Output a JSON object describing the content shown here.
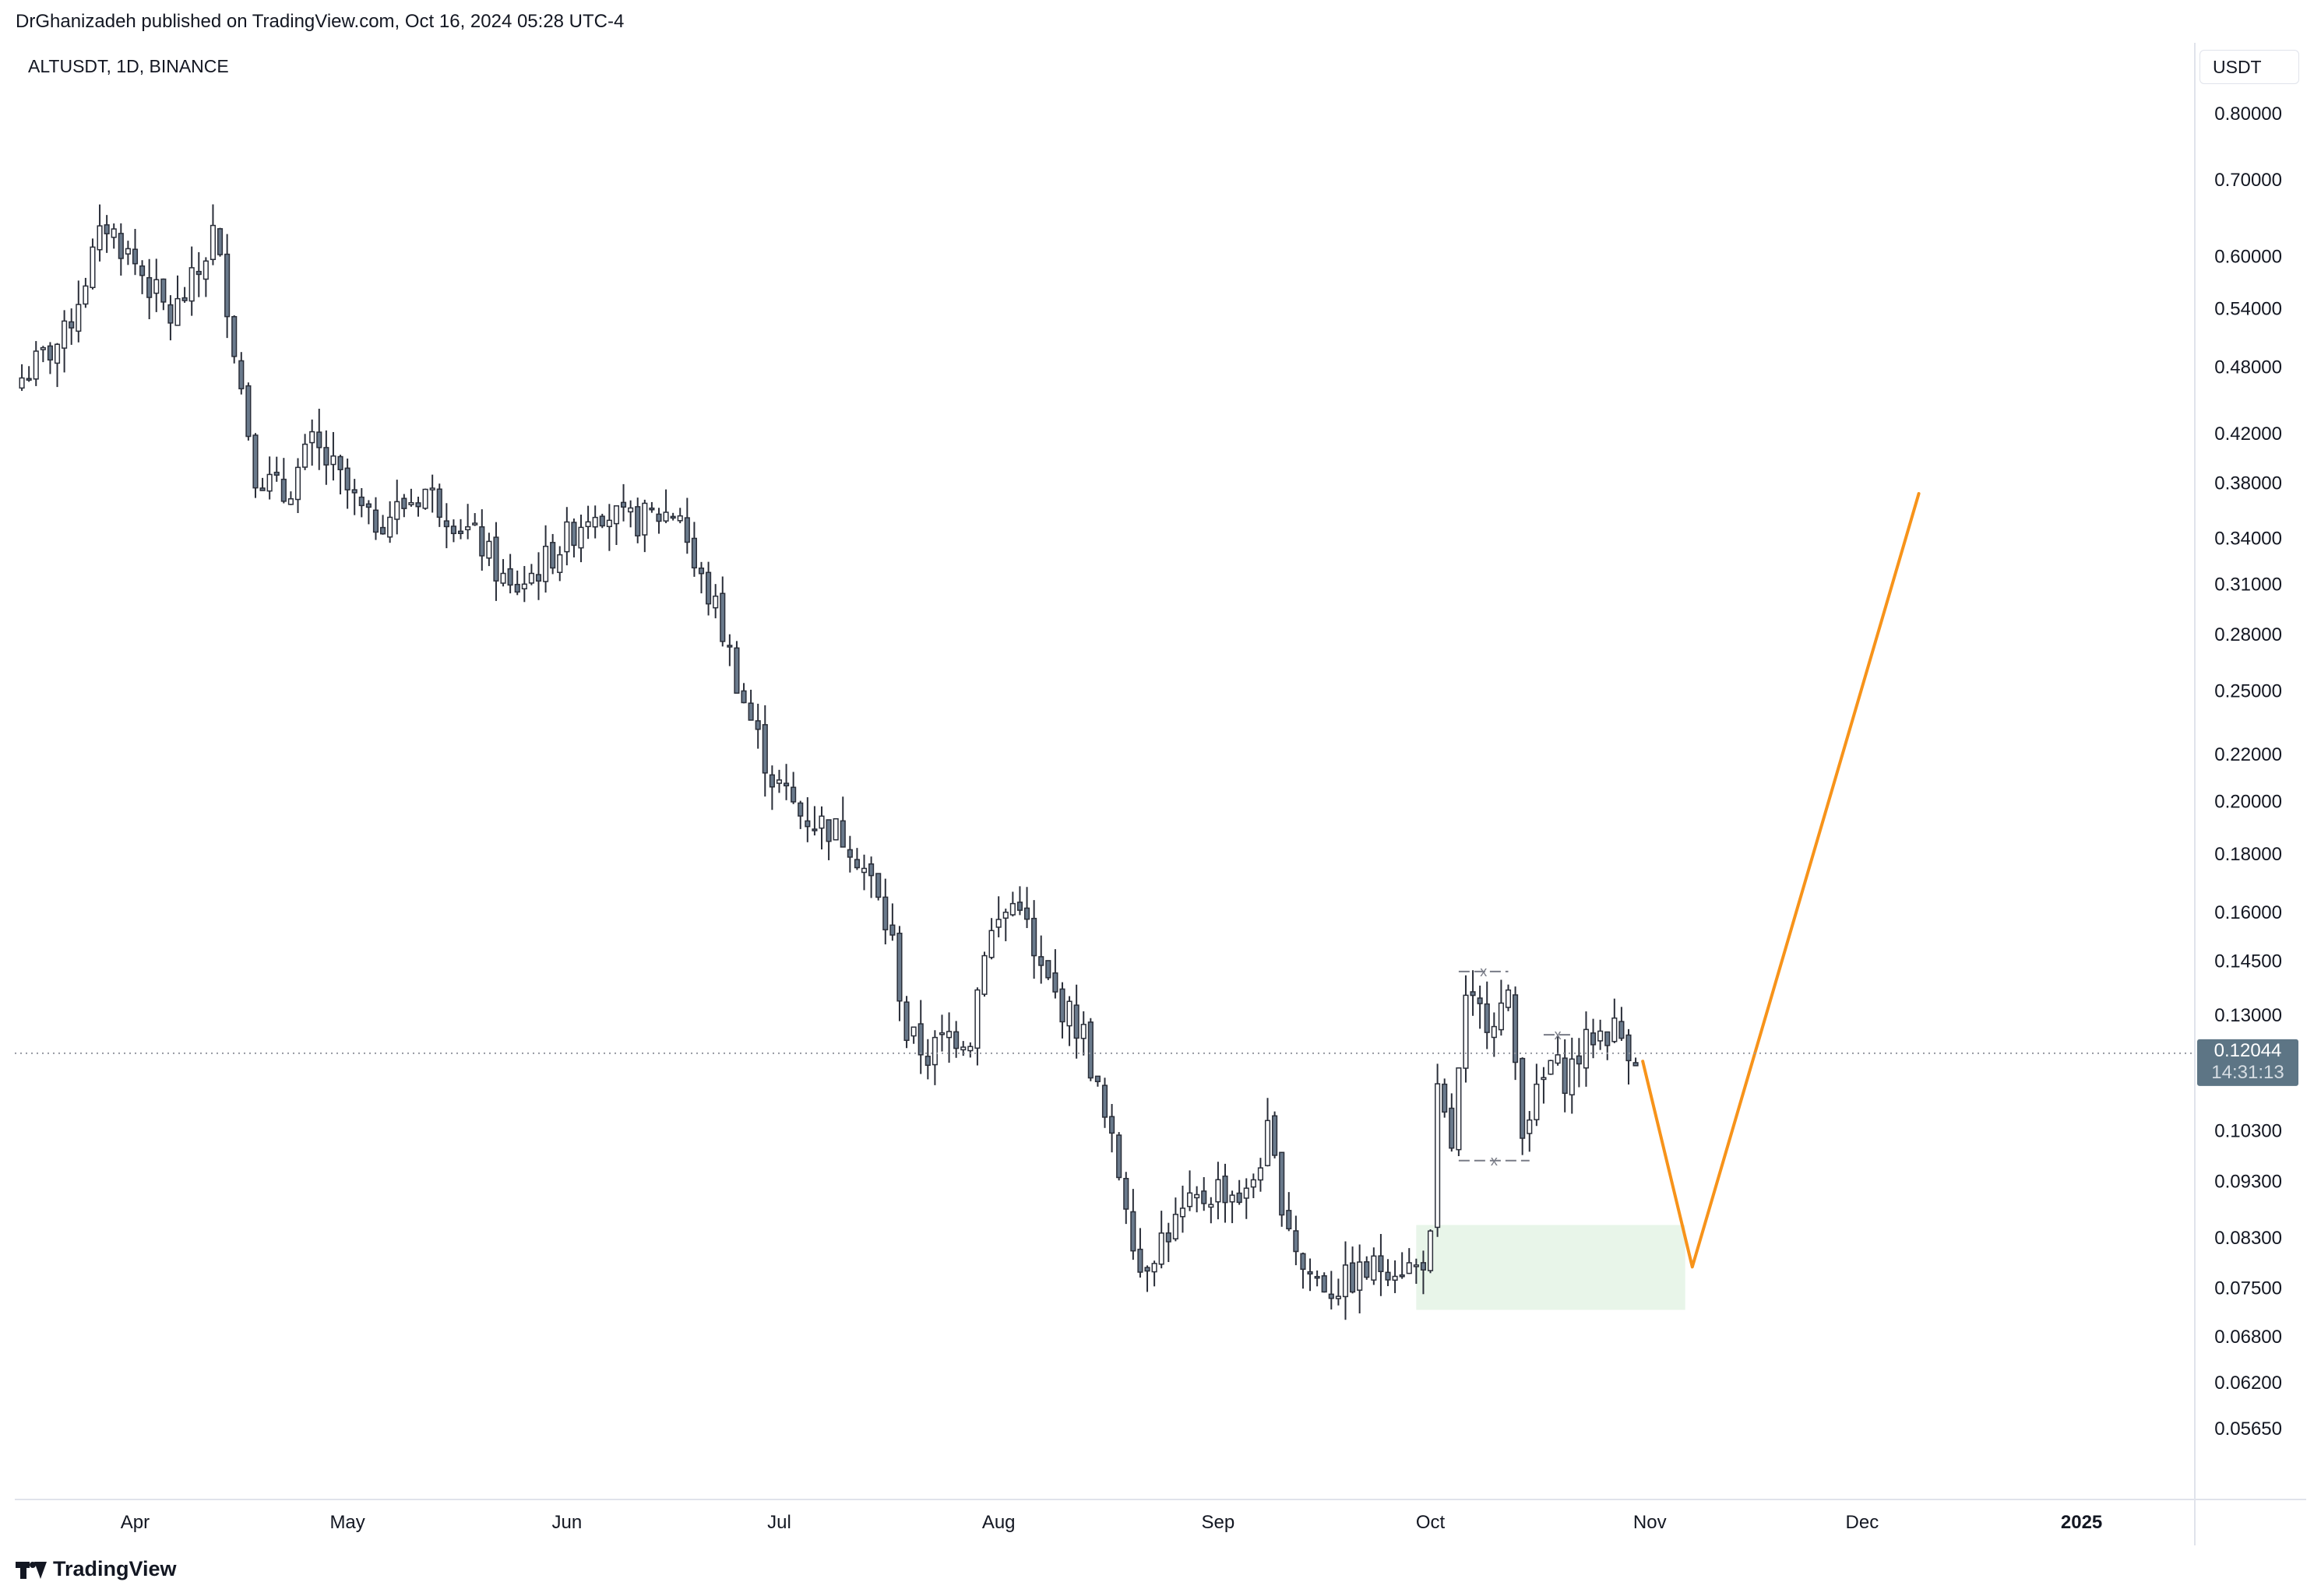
{
  "header": {
    "published_line": "DrGhanizadeh published on TradingView.com, Oct 16, 2024 05:28 UTC-4"
  },
  "symbol_info": "ALTUSDT, 1D, BINANCE",
  "currency_button": "USDT",
  "footer": {
    "brand": "TradingView"
  },
  "colors": {
    "candle_body": "#6a7a8c",
    "candle_border": "#2a2e39",
    "candle_up_fill": "#ffffff",
    "projection_line": "#f7931a",
    "demand_zone": "#e8f5e9",
    "price_tag_bg": "#5d7585",
    "grid_line": "#e0e3eb"
  },
  "chart_data": {
    "type": "candlestick",
    "title": "ALTUSDT, 1D, BINANCE",
    "y_scale": "log",
    "y_ticks": [
      "0.80000",
      "0.70000",
      "0.60000",
      "0.54000",
      "0.48000",
      "0.42000",
      "0.38000",
      "0.34000",
      "0.31000",
      "0.28000",
      "0.25000",
      "0.22000",
      "0.20000",
      "0.18000",
      "0.16000",
      "0.14500",
      "0.13000",
      "0.10300",
      "0.09300",
      "0.08300",
      "0.07500",
      "0.06800",
      "0.06200",
      "0.05650"
    ],
    "x_ticks": [
      "Apr",
      "May",
      "Jun",
      "Jul",
      "Aug",
      "Sep",
      "Oct",
      "Nov",
      "Dec",
      "2025"
    ],
    "ylim": [
      0.053,
      0.84
    ],
    "xlim": [
      "2024-03-15",
      "2025-01-17"
    ],
    "current_price": {
      "value": "0.12044",
      "countdown": "14:31:13"
    },
    "anchors": [
      {
        "date": "2024-03-16",
        "price": 0.47
      },
      {
        "date": "2024-03-22",
        "price": 0.51
      },
      {
        "date": "2024-03-26",
        "price": 0.6
      },
      {
        "date": "2024-03-28",
        "price": 0.64
      },
      {
        "date": "2024-04-02",
        "price": 0.58
      },
      {
        "date": "2024-04-06",
        "price": 0.53
      },
      {
        "date": "2024-04-10",
        "price": 0.58
      },
      {
        "date": "2024-04-12",
        "price": 0.63
      },
      {
        "date": "2024-04-14",
        "price": 0.55
      },
      {
        "date": "2024-04-16",
        "price": 0.46
      },
      {
        "date": "2024-04-18",
        "price": 0.39
      },
      {
        "date": "2024-04-22",
        "price": 0.37
      },
      {
        "date": "2024-04-26",
        "price": 0.41
      },
      {
        "date": "2024-04-29",
        "price": 0.39
      },
      {
        "date": "2024-05-04",
        "price": 0.35
      },
      {
        "date": "2024-05-08",
        "price": 0.36
      },
      {
        "date": "2024-05-12",
        "price": 0.375
      },
      {
        "date": "2024-05-16",
        "price": 0.355
      },
      {
        "date": "2024-05-20",
        "price": 0.335
      },
      {
        "date": "2024-05-24",
        "price": 0.305
      },
      {
        "date": "2024-05-28",
        "price": 0.32
      },
      {
        "date": "2024-06-01",
        "price": 0.34
      },
      {
        "date": "2024-06-05",
        "price": 0.365
      },
      {
        "date": "2024-06-09",
        "price": 0.35
      },
      {
        "date": "2024-06-13",
        "price": 0.355
      },
      {
        "date": "2024-06-17",
        "price": 0.36
      },
      {
        "date": "2024-06-19",
        "price": 0.32
      },
      {
        "date": "2024-06-22",
        "price": 0.295
      },
      {
        "date": "2024-06-26",
        "price": 0.245
      },
      {
        "date": "2024-06-30",
        "price": 0.21
      },
      {
        "date": "2024-07-04",
        "price": 0.195
      },
      {
        "date": "2024-07-08",
        "price": 0.19
      },
      {
        "date": "2024-07-11",
        "price": 0.185
      },
      {
        "date": "2024-07-14",
        "price": 0.17
      },
      {
        "date": "2024-07-17",
        "price": 0.15
      },
      {
        "date": "2024-07-19",
        "price": 0.125
      },
      {
        "date": "2024-07-22",
        "price": 0.12
      },
      {
        "date": "2024-07-25",
        "price": 0.125
      },
      {
        "date": "2024-07-28",
        "price": 0.125
      },
      {
        "date": "2024-07-30",
        "price": 0.15
      },
      {
        "date": "2024-08-02",
        "price": 0.16
      },
      {
        "date": "2024-08-04",
        "price": 0.165
      },
      {
        "date": "2024-08-06",
        "price": 0.145
      },
      {
        "date": "2024-08-09",
        "price": 0.135
      },
      {
        "date": "2024-08-13",
        "price": 0.125
      },
      {
        "date": "2024-08-16",
        "price": 0.105
      },
      {
        "date": "2024-08-19",
        "price": 0.09
      },
      {
        "date": "2024-08-21",
        "price": 0.078
      },
      {
        "date": "2024-08-24",
        "price": 0.083
      },
      {
        "date": "2024-08-28",
        "price": 0.088
      },
      {
        "date": "2024-09-01",
        "price": 0.092
      },
      {
        "date": "2024-09-05",
        "price": 0.09
      },
      {
        "date": "2024-09-08",
        "price": 0.102
      },
      {
        "date": "2024-09-10",
        "price": 0.09
      },
      {
        "date": "2024-09-13",
        "price": 0.078
      },
      {
        "date": "2024-09-17",
        "price": 0.075
      },
      {
        "date": "2024-09-21",
        "price": 0.077
      },
      {
        "date": "2024-09-25",
        "price": 0.079
      },
      {
        "date": "2024-09-29",
        "price": 0.078
      },
      {
        "date": "2024-10-01",
        "price": 0.082
      },
      {
        "date": "2024-10-02",
        "price": 0.11
      },
      {
        "date": "2024-10-04",
        "price": 0.1
      },
      {
        "date": "2024-10-06",
        "price": 0.132
      },
      {
        "date": "2024-10-09",
        "price": 0.13
      },
      {
        "date": "2024-10-12",
        "price": 0.133
      },
      {
        "date": "2024-10-14",
        "price": 0.105
      },
      {
        "date": "2024-10-16",
        "price": 0.11
      },
      {
        "date": "2024-10-18",
        "price": 0.118
      },
      {
        "date": "2024-10-20",
        "price": 0.115
      },
      {
        "date": "2024-10-24",
        "price": 0.125
      },
      {
        "date": "2024-10-27",
        "price": 0.1265
      },
      {
        "date": "2024-10-30",
        "price": 0.1204
      }
    ],
    "projection_path": [
      {
        "date": "2024-10-31",
        "price": 0.1185
      },
      {
        "date": "2024-11-07",
        "price": 0.0783
      },
      {
        "date": "2024-12-09",
        "price": 0.372
      }
    ],
    "demand_zone": {
      "start": "2024-09-29",
      "end": "2024-11-06",
      "top": 0.0852,
      "bottom": 0.0718
    },
    "range_markers": [
      {
        "start": "2024-10-05",
        "end": "2024-10-12",
        "price": 0.142
      },
      {
        "start": "2024-10-05",
        "end": "2024-10-15",
        "price": 0.097
      },
      {
        "start": "2024-10-17",
        "end": "2024-10-21",
        "price": 0.125
      }
    ],
    "range_marker_label": "x"
  }
}
